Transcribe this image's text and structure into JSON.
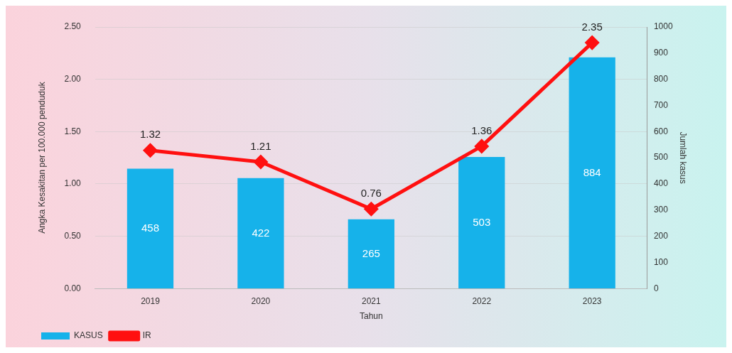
{
  "chart_data": {
    "type": "bar",
    "xlabel": "Tahun",
    "ylabel": "Angka Kesakitan per 100.000 penduduk",
    "y2label": "Jumlah kasus",
    "categories": [
      "2019",
      "2020",
      "2021",
      "2022",
      "2023"
    ],
    "series": [
      {
        "name": "KASUS",
        "axis": "y2",
        "color": "#16b2ea",
        "values": [
          458,
          422,
          265,
          503,
          884
        ]
      },
      {
        "name": "IR",
        "type": "line",
        "axis": "y",
        "color": "#ff1010",
        "marker": "diamond",
        "values": [
          1.32,
          1.21,
          0.76,
          1.36,
          2.35
        ]
      }
    ],
    "ylim": [
      0,
      2.5
    ],
    "yticks": [
      {
        "value": 0,
        "label": "0.00"
      },
      {
        "value": 0.5,
        "label": "0.50"
      },
      {
        "value": 1,
        "label": "1.00"
      },
      {
        "value": 1.5,
        "label": "1.50"
      },
      {
        "value": 2,
        "label": "2.00"
      },
      {
        "value": 2.5,
        "label": "2.50"
      }
    ],
    "y2lim": [
      0,
      1000
    ],
    "y2ticks": [
      0,
      100,
      200,
      300,
      400,
      500,
      600,
      700,
      800,
      900,
      1000
    ],
    "grid": "y",
    "legend": "bottom left",
    "data_labels": true
  }
}
